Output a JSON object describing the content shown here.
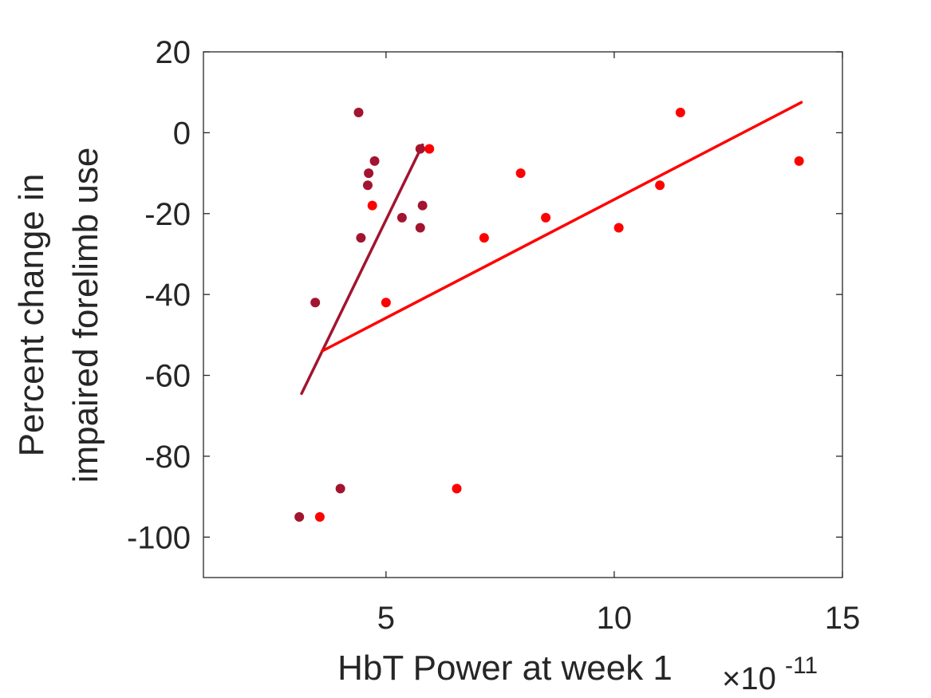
{
  "chart_data": {
    "type": "scatter",
    "title": "",
    "xlabel": "HbT Power at week 1",
    "ylabel_lines": [
      "Percent change in",
      "impaired forelimb use"
    ],
    "x_exponent": {
      "base": "×10",
      "power": "-11"
    },
    "xlim": [
      1,
      15
    ],
    "ylim": [
      -110,
      20
    ],
    "x_ticks": [
      5,
      10,
      15
    ],
    "y_ticks": [
      20,
      0,
      -20,
      -40,
      -60,
      -80,
      -100
    ],
    "grid": false,
    "legend": "none",
    "series": [
      {
        "color": "#A2142F",
        "points": [
          [
            3.1,
            -95
          ],
          [
            3.45,
            -42
          ],
          [
            4.0,
            -88
          ],
          [
            4.4,
            5
          ],
          [
            4.45,
            -26
          ],
          [
            4.6,
            -13
          ],
          [
            4.62,
            -10
          ],
          [
            4.75,
            -7
          ],
          [
            5.35,
            -21
          ],
          [
            5.75,
            -23.5
          ],
          [
            5.8,
            -18
          ],
          [
            5.75,
            -4
          ]
        ],
        "fit": [
          [
            3.15,
            -64.5
          ],
          [
            5.8,
            -3
          ]
        ]
      },
      {
        "color": "#FF0000",
        "points": [
          [
            3.55,
            -95
          ],
          [
            4.7,
            -18
          ],
          [
            5.0,
            -42
          ],
          [
            5.95,
            -4
          ],
          [
            6.55,
            -88
          ],
          [
            7.15,
            -26
          ],
          [
            7.95,
            -10
          ],
          [
            8.5,
            -21
          ],
          [
            10.1,
            -23.5
          ],
          [
            11.0,
            -13
          ],
          [
            11.45,
            5
          ],
          [
            14.05,
            -7
          ]
        ],
        "fit": [
          [
            3.6,
            -54
          ],
          [
            14.1,
            7.5
          ]
        ]
      }
    ]
  }
}
